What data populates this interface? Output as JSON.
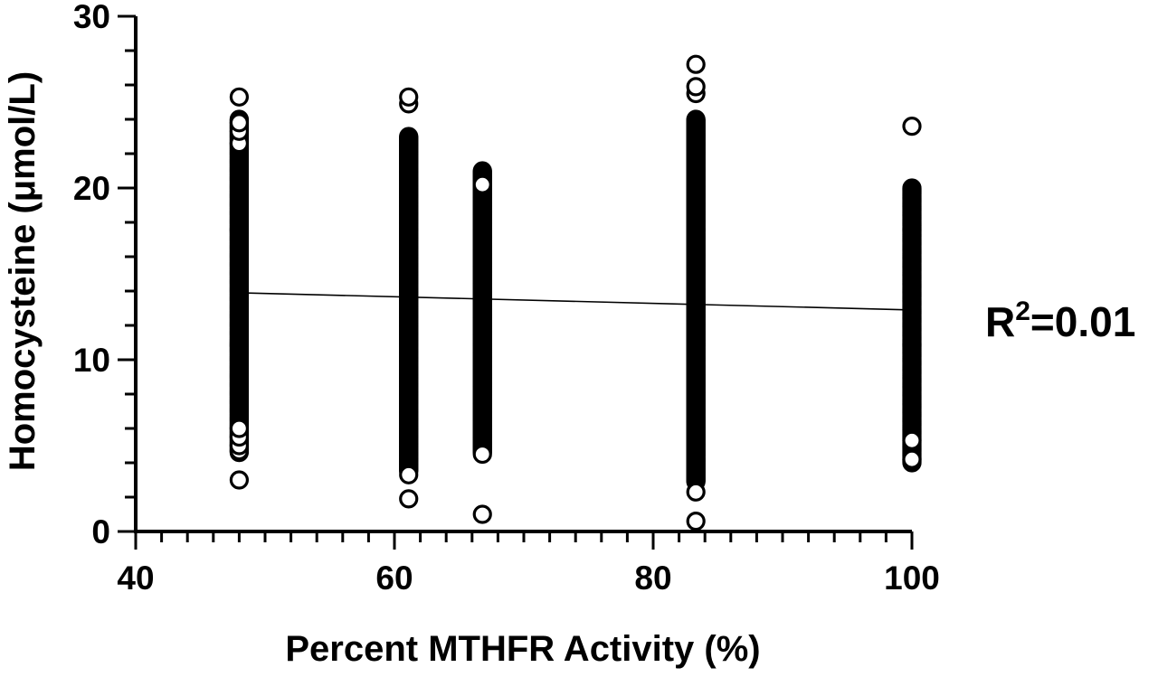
{
  "chart_data": {
    "type": "scatter",
    "title": "",
    "xlabel": "Percent MTHFR Activity (%)",
    "ylabel": "Homocysteine (μmol/L)",
    "xlim": [
      40,
      100
    ],
    "ylim": [
      0,
      30
    ],
    "x_ticks": [
      "40",
      "60",
      "80",
      "100"
    ],
    "y_ticks": [
      "0",
      "10",
      "20",
      "30"
    ],
    "x_minor_step": 2,
    "y_minor_step": 2,
    "marker": "open-circle",
    "marker_color": "#000000",
    "groups": [
      {
        "x": 48,
        "range": [
          4.6,
          24.0
        ],
        "outliers": [
          3.0,
          4.7,
          5.0,
          5.5,
          6.0,
          22.6,
          23.3,
          23.8,
          25.3
        ]
      },
      {
        "x": 61.1,
        "range": [
          3.5,
          23.0
        ],
        "outliers": [
          1.9,
          3.3,
          24.9,
          25.3
        ]
      },
      {
        "x": 66.8,
        "range": [
          4.6,
          21.0
        ],
        "outliers": [
          1.0,
          4.5,
          20.2
        ]
      },
      {
        "x": 83.3,
        "range": [
          2.9,
          24.0
        ],
        "outliers": [
          0.6,
          2.3,
          25.5,
          25.9,
          27.2
        ]
      },
      {
        "x": 100,
        "range": [
          4.0,
          20.0
        ],
        "outliers": [
          4.2,
          5.3,
          23.6
        ]
      }
    ],
    "trendline": {
      "x": [
        48,
        100
      ],
      "y": [
        13.9,
        12.9
      ]
    },
    "annotation": {
      "base": "R",
      "sup": "2",
      "rest": "=0.01"
    },
    "grid": false,
    "legend": "none"
  }
}
